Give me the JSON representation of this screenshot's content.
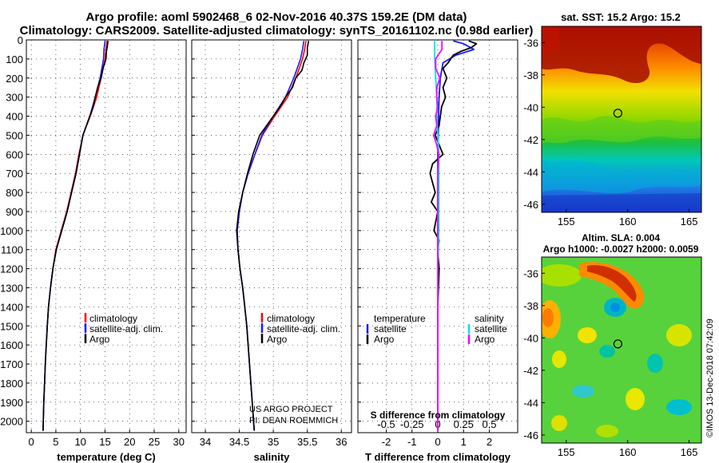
{
  "title": {
    "line1": "Argo profile: aoml 5902468_6 02-Nov-2016 40.37S 159.2E (DM data)",
    "line2": "Climatology: CARS2009. Satellite-adjusted climatology: synTS_20161102.nc (0.98d earlier)"
  },
  "colors": {
    "climatology": "#ff0000",
    "satellite": "#1a1aff",
    "argo": "#000000",
    "sat_salinity": "#00e5ee",
    "salinity_argo": "#ff00ff"
  },
  "chart_data": [
    {
      "type": "line",
      "title": "",
      "xlabel": "temperature (deg C)",
      "ylabel": "",
      "xlim": [
        -1,
        31.5
      ],
      "ylim": [
        2060,
        0
      ],
      "xticks": [
        0,
        5,
        10,
        15,
        20,
        25,
        30
      ],
      "yticks": [
        0,
        100,
        200,
        300,
        400,
        500,
        600,
        700,
        800,
        900,
        1000,
        1100,
        1200,
        1300,
        1400,
        1500,
        1600,
        1700,
        1800,
        1900,
        2000
      ],
      "legend": [
        "climatology",
        "satellite-adj. clim.",
        "Argo"
      ],
      "series": [
        {
          "name": "climatology",
          "depth": [
            5,
            50,
            100,
            200,
            300,
            400,
            500,
            600,
            700,
            800,
            900,
            1000,
            1100,
            1200,
            1300,
            1400,
            1500,
            1600,
            1700,
            1800,
            1900,
            2000,
            2050
          ],
          "values": [
            15.4,
            15.2,
            15.0,
            14.2,
            13.3,
            12.0,
            10.5,
            9.7,
            9.0,
            8.1,
            7.2,
            6.1,
            5.0,
            4.4,
            3.9,
            3.5,
            3.25,
            3.05,
            2.85,
            2.7,
            2.55,
            2.45,
            2.4
          ]
        },
        {
          "name": "satellite-adj. clim.",
          "depth": [
            5,
            50,
            100,
            200,
            300,
            400,
            500,
            600,
            700,
            800,
            900,
            1000,
            1100,
            1200,
            1300,
            1400,
            1500,
            1600,
            1700,
            1800,
            1900,
            2000,
            2050
          ],
          "values": [
            15.0,
            14.8,
            14.7,
            14.0,
            13.0,
            11.9,
            10.5,
            9.8,
            9.1,
            8.2,
            7.3,
            6.2,
            5.1,
            4.4,
            3.9,
            3.5,
            3.25,
            3.05,
            2.85,
            2.7,
            2.55,
            2.45,
            2.4
          ]
        },
        {
          "name": "Argo",
          "depth": [
            5,
            30,
            60,
            100,
            150,
            200,
            250,
            300,
            350,
            400,
            450,
            500,
            600,
            700,
            800,
            900,
            1000,
            1100,
            1200,
            1300,
            1400,
            1500,
            1600,
            1700,
            1800,
            1900,
            2000,
            2050
          ],
          "values": [
            15.6,
            15.5,
            15.3,
            15.2,
            14.6,
            14.2,
            13.5,
            13.0,
            12.6,
            11.9,
            11.2,
            10.5,
            9.8,
            9.1,
            8.2,
            7.3,
            6.2,
            5.1,
            4.4,
            3.9,
            3.5,
            3.25,
            3.05,
            2.85,
            2.7,
            2.55,
            2.45,
            2.4
          ]
        }
      ]
    },
    {
      "type": "line",
      "title": "",
      "xlabel": "salinity",
      "ylabel": "",
      "xlim": [
        33.8,
        36.15
      ],
      "ylim": [
        2060,
        0
      ],
      "xticks": [
        34,
        34.5,
        35,
        35.5,
        36
      ],
      "xticklabels": [
        "34",
        "34.5",
        "35",
        "35.5",
        "36"
      ],
      "legend": [
        "climatology",
        "satellite-adj. clim.",
        "Argo"
      ],
      "series": [
        {
          "name": "climatology",
          "depth": [
            5,
            50,
            100,
            200,
            300,
            400,
            500,
            600,
            700,
            800,
            900,
            1000,
            1100,
            1200,
            1300,
            1400,
            1500,
            1600,
            1700,
            1800,
            1900,
            2000,
            2050
          ],
          "values": [
            35.48,
            35.46,
            35.43,
            35.33,
            35.21,
            35.02,
            34.84,
            34.73,
            34.63,
            34.55,
            34.5,
            34.47,
            34.48,
            34.51,
            34.55,
            34.58,
            34.61,
            34.63,
            34.65,
            34.67,
            34.69,
            34.71,
            34.72
          ]
        },
        {
          "name": "satellite-adj. clim.",
          "depth": [
            5,
            50,
            100,
            200,
            300,
            400,
            500,
            600,
            700,
            800,
            900,
            1000,
            1100,
            1200,
            1300,
            1400,
            1500,
            1600,
            1700,
            1800,
            1900,
            2000,
            2050
          ],
          "values": [
            35.45,
            35.43,
            35.4,
            35.3,
            35.18,
            35.0,
            34.83,
            34.73,
            34.63,
            34.55,
            34.5,
            34.47,
            34.48,
            34.51,
            34.55,
            34.58,
            34.61,
            34.63,
            34.65,
            34.67,
            34.69,
            34.71,
            34.72
          ]
        },
        {
          "name": "Argo",
          "depth": [
            5,
            40,
            80,
            120,
            160,
            200,
            250,
            300,
            350,
            400,
            450,
            500,
            600,
            700,
            800,
            900,
            1000,
            1100,
            1200,
            1300,
            1400,
            1500,
            1600,
            1700,
            1800,
            1900,
            2000,
            2050
          ],
          "values": [
            35.52,
            35.5,
            35.5,
            35.45,
            35.42,
            35.33,
            35.28,
            35.18,
            35.1,
            35.0,
            34.9,
            34.8,
            34.7,
            34.62,
            34.55,
            34.49,
            34.46,
            34.48,
            34.51,
            34.55,
            34.58,
            34.61,
            34.63,
            34.65,
            34.67,
            34.69,
            34.71,
            34.72
          ]
        }
      ]
    },
    {
      "type": "line",
      "title": "",
      "xlabel": "T difference from climatology",
      "ylabel": "",
      "xlim": [
        -3.1,
        3.1
      ],
      "ylim": [
        2060,
        0
      ],
      "xticks": [
        -2,
        -1,
        0,
        1,
        2
      ],
      "secondary_axis": {
        "label": "S difference from climatology",
        "ticks": [
          -0.5,
          -0.25,
          0,
          0.25,
          0.5
        ],
        "ticklabels": [
          "-0.5",
          "-0.25",
          "0",
          "0.25",
          "0.5"
        ],
        "scale_factor": 4
      },
      "legend_temperature": {
        "heading": "temperature",
        "entries": [
          "satellite",
          "Argo"
        ]
      },
      "legend_salinity": {
        "heading": "salinity",
        "entries": [
          "satellite",
          "Argo"
        ]
      },
      "series": [
        {
          "name": "temperature satellite",
          "axis": "T",
          "depth": [
            5,
            20,
            50,
            80,
            120,
            200,
            300,
            400,
            500,
            600,
            700,
            800,
            900,
            1000,
            1200,
            1400,
            1600,
            1800,
            2000,
            2050
          ],
          "values": [
            0.6,
            1.0,
            1.4,
            0.7,
            0.2,
            0.1,
            0.05,
            0.03,
            0.02,
            0.0,
            0.0,
            0.0,
            0.0,
            0.0,
            0.0,
            0.0,
            0.0,
            0.0,
            0.0,
            0.0
          ]
        },
        {
          "name": "temperature Argo",
          "axis": "T",
          "depth": [
            5,
            20,
            40,
            60,
            80,
            100,
            120,
            150,
            200,
            250,
            300,
            350,
            400,
            450,
            500,
            600,
            650,
            700,
            800,
            850,
            900,
            1000,
            1050,
            1100,
            1200,
            1400,
            1600,
            1800,
            2000,
            2050
          ],
          "values": [
            1.2,
            1.5,
            1.3,
            0.9,
            0.6,
            0.5,
            0.4,
            0.2,
            0.35,
            0.2,
            0.3,
            0.15,
            0.1,
            0.05,
            -0.1,
            0.2,
            -0.2,
            -0.3,
            -0.1,
            -0.25,
            0.0,
            -0.15,
            0.05,
            0.0,
            0.05,
            0.0,
            0.0,
            0.0,
            0.0,
            0.0
          ]
        },
        {
          "name": "salinity satellite",
          "axis": "S",
          "depth": [
            5,
            100,
            200,
            300,
            400,
            500,
            600,
            800,
            1000,
            1200,
            1400,
            1600,
            1800,
            2000,
            2050
          ],
          "values": [
            -0.03,
            -0.03,
            -0.02,
            -0.01,
            -0.01,
            0.0,
            0.01,
            0.01,
            0.01,
            0.0,
            0.0,
            0.0,
            0.0,
            0.0,
            0.0
          ]
        },
        {
          "name": "salinity Argo",
          "axis": "S",
          "depth": [
            5,
            50,
            100,
            150,
            200,
            250,
            300,
            350,
            400,
            450,
            500,
            550,
            600,
            700,
            800,
            900,
            1000,
            1100,
            1200,
            1400,
            1600,
            1800,
            2000,
            2050
          ],
          "values": [
            0.04,
            0.04,
            -0.02,
            -0.02,
            0.02,
            -0.01,
            -0.01,
            0.0,
            -0.02,
            -0.01,
            -0.04,
            -0.01,
            0.01,
            0.0,
            0.0,
            0.0,
            0.0,
            0.0,
            0.0,
            0.0,
            0.0,
            0.0,
            0.0,
            0.0
          ]
        }
      ]
    },
    {
      "type": "heatmap",
      "title": "sat. SST: 15.2 Argo: 15.2",
      "xlim": [
        153,
        166
      ],
      "ylim": [
        -46.5,
        -35
      ],
      "xticks": [
        155,
        160,
        165
      ],
      "yticks": [
        -36,
        -38,
        -40,
        -42,
        -44,
        -46
      ],
      "marker": {
        "lon": 159.2,
        "lat": -40.37
      }
    },
    {
      "type": "heatmap",
      "title": "Altim. SLA: 0.004",
      "subtitle": "Argo h1000: -0.0027 h2000: 0.0059",
      "xlim": [
        153,
        166
      ],
      "ylim": [
        -46.5,
        -35
      ],
      "xticks": [
        155,
        160,
        165
      ],
      "yticks": [
        -36,
        -38,
        -40,
        -42,
        -44,
        -46
      ],
      "marker": {
        "lon": 159.2,
        "lat": -40.37
      }
    }
  ],
  "legend1": {
    "clim": "climatology",
    "sat": "satellite-adj. clim.",
    "argo": "Argo"
  },
  "legend2": {
    "clim": "climatology",
    "sat": "satellite-adj. clim.",
    "argo": "Argo"
  },
  "legend3": {
    "temp_head": "temperature",
    "temp_sat": "satellite",
    "temp_argo": "Argo",
    "sal_head": "salinity",
    "sal_sat": "satellite",
    "sal_argo": "Argo"
  },
  "credits": {
    "line1": "US ARGO PROJECT",
    "line2": "PI: DEAN ROEMMICH"
  },
  "watermark": "©IMOS 13-Dec-2018 07:42:09"
}
